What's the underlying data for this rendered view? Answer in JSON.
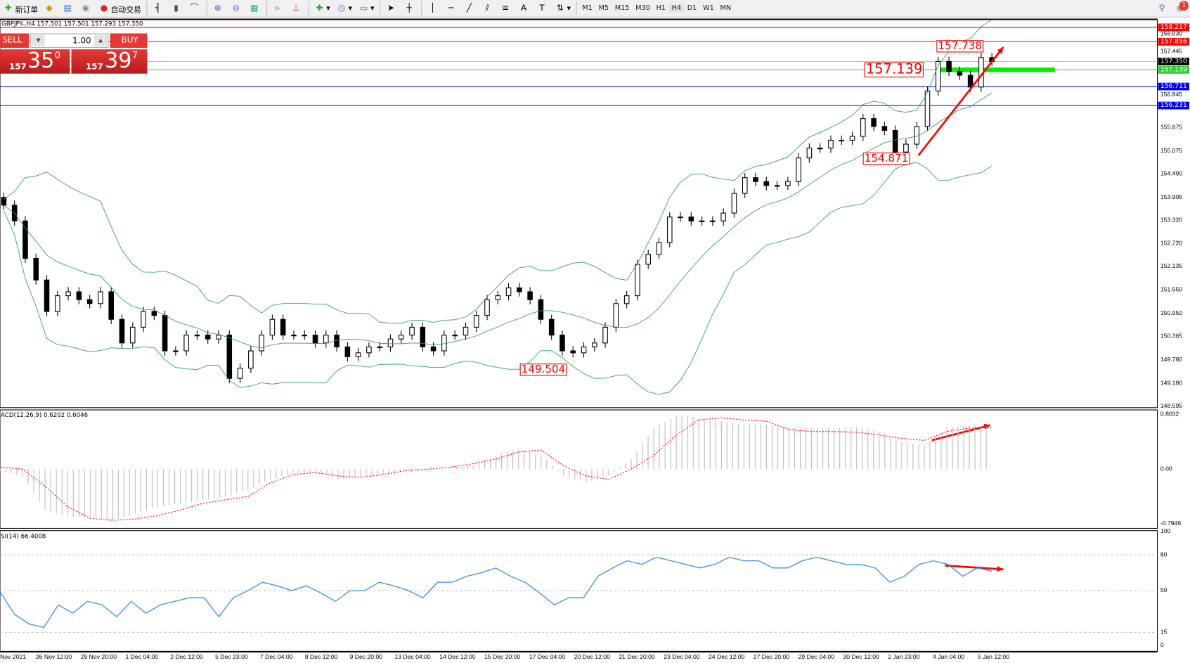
{
  "toolbar": {
    "new_order": "新订单",
    "auto_trading": "自动交易",
    "timeframes": [
      "M1",
      "M5",
      "M15",
      "M30",
      "H1",
      "H4",
      "D1",
      "W1",
      "MN"
    ],
    "active_timeframe": "H4",
    "notification_count": "1"
  },
  "chart_info": "GBPJPY-,H4  157.501 157.501 157.293 157.350",
  "trade_panel": {
    "sell_label": "SELL",
    "buy_label": "BUY",
    "lot": "1.00",
    "sell_big": "157",
    "sell_main": "35",
    "sell_sup": "0",
    "buy_big": "157",
    "buy_main": "39",
    "buy_sup": "7"
  },
  "price_axis": [
    "155.675",
    "155.075",
    "154.490",
    "153.905",
    "153.320",
    "152.720",
    "152.135",
    "151.550",
    "150.950",
    "150.365",
    "149.780",
    "149.180",
    "148.595",
    "158.030",
    "157.445",
    "156.845"
  ],
  "level_tags": [
    {
      "value": "158.217",
      "color": "#ff0000"
    },
    {
      "value": "157.856",
      "color": "#ff0000"
    },
    {
      "value": "157.350",
      "color": "#000000"
    },
    {
      "value": "157.139",
      "color": "#33cc33"
    },
    {
      "value": "156.711",
      "color": "#0000ff"
    },
    {
      "value": "156.231",
      "color": "#0000ff"
    }
  ],
  "annotations": {
    "high_label": "157.738",
    "level_label": "157.139",
    "swing_low_label": "154.871",
    "low_label": "149.504"
  },
  "macd": {
    "label": "ACD(12,26,9) 0.6202 0.6046",
    "axis": [
      "0.8032",
      "0.00",
      "-0.7946"
    ]
  },
  "rsi": {
    "label": "SI(14) 66.4008",
    "axis": [
      "100",
      "80",
      "50",
      "15",
      "0"
    ]
  },
  "time_axis": [
    "Nov 2021",
    "26 Nov 12:00",
    "29 Nov 20:00",
    "1 Dec 04:00",
    "2 Dec 12:00",
    "5 Dec 23:00",
    "7 Dec 04:00",
    "8 Dec 12:00",
    "9 Dec 20:00",
    "13 Dec 04:00",
    "14 Dec 12:00",
    "15 Dec 20:00",
    "17 Dec 04:00",
    "20 Dec 12:00",
    "21 Dec 20:00",
    "23 Dec 04:00",
    "24 Dec 12:00",
    "27 Dec 20:00",
    "29 Dec 04:00",
    "30 Dec 12:00",
    "2 Jan 23:00",
    "4 Jan 04:00",
    "5 Jan 12:00"
  ],
  "chart_data": {
    "type": "candlestick",
    "symbol": "GBPJPY-",
    "timeframe": "H4",
    "ylim": [
      148.595,
      158.217
    ],
    "closes": [
      153.7,
      153.3,
      152.35,
      151.8,
      151.0,
      151.4,
      151.5,
      151.3,
      151.2,
      151.5,
      150.8,
      150.2,
      150.6,
      151.0,
      150.9,
      150.0,
      150.0,
      150.4,
      150.4,
      150.3,
      150.4,
      149.3,
      149.56,
      150.0,
      150.4,
      150.8,
      150.4,
      150.4,
      150.4,
      150.2,
      150.4,
      150.1,
      149.85,
      149.95,
      150.1,
      150.1,
      150.3,
      150.4,
      150.6,
      150.1,
      150.0,
      150.4,
      150.4,
      150.6,
      150.9,
      151.3,
      151.4,
      151.6,
      151.5,
      151.3,
      150.8,
      150.4,
      150.0,
      149.95,
      150.1,
      150.2,
      150.6,
      151.2,
      151.4,
      152.2,
      152.45,
      152.75,
      153.4,
      153.4,
      153.3,
      153.3,
      153.3,
      153.5,
      154.0,
      154.4,
      154.3,
      154.2,
      154.2,
      154.3,
      154.9,
      155.15,
      155.15,
      155.35,
      155.35,
      155.45,
      155.9,
      155.7,
      155.6,
      155.05,
      155.25,
      155.7,
      156.6,
      157.35,
      157.1,
      157.0,
      156.7,
      157.45,
      157.35
    ],
    "levels": [
      158.217,
      157.856,
      157.35,
      157.139,
      156.711,
      156.231
    ],
    "macd_histogram": [
      -0.02,
      -0.1,
      -0.6,
      -0.7,
      -0.7,
      -0.75,
      -0.65,
      -0.55,
      -0.5,
      -0.45,
      -0.4,
      -0.3,
      -0.15,
      -0.05,
      -0.05,
      -0.15,
      -0.12,
      -0.08,
      -0.05,
      -0.02,
      0.02,
      0.05,
      0.2,
      0.3,
      0.2,
      -0.1,
      -0.2,
      -0.1,
      0.15,
      0.6,
      0.78,
      0.75,
      0.7,
      0.65,
      0.65,
      0.6,
      0.6,
      0.6,
      0.62,
      0.55,
      0.4,
      0.35,
      0.6,
      0.65,
      0.6202
    ],
    "macd_signal": [
      0.03,
      0.0,
      -0.25,
      -0.55,
      -0.72,
      -0.75,
      -0.73,
      -0.68,
      -0.6,
      -0.5,
      -0.45,
      -0.4,
      -0.2,
      -0.08,
      -0.05,
      -0.1,
      -0.12,
      -0.08,
      -0.02,
      0.0,
      0.03,
      0.08,
      0.15,
      0.25,
      0.28,
      0.05,
      -0.1,
      -0.15,
      0.0,
      0.2,
      0.5,
      0.72,
      0.75,
      0.72,
      0.7,
      0.58,
      0.55,
      0.55,
      0.54,
      0.5,
      0.45,
      0.42,
      0.55,
      0.6,
      0.6046
    ],
    "macd_ylim": [
      -0.7946,
      0.8032
    ],
    "rsi_values": [
      49,
      30,
      22,
      19,
      38,
      31,
      41,
      38,
      28,
      41,
      31,
      38,
      41,
      44,
      44,
      28,
      44,
      50,
      57,
      54,
      50,
      54,
      48,
      41,
      50,
      50,
      57,
      54,
      50,
      44,
      57,
      57,
      62,
      65,
      69,
      62,
      57,
      48,
      38,
      44,
      44,
      62,
      69,
      75,
      72,
      78,
      75,
      72,
      69,
      72,
      78,
      75,
      75,
      69,
      69,
      75,
      78,
      75,
      72,
      72,
      69,
      57,
      62,
      72,
      75,
      72,
      62,
      69,
      66.4
    ],
    "rsi_levels": [
      80,
      50,
      15
    ],
    "colors": {
      "up": "#ffffff",
      "down": "#000000",
      "bands": "#2e9e5a",
      "macd_signal": "#ff0000",
      "macd_hist": "#bbbbbb",
      "rsi": "#3a8ee6",
      "arrows": "#ff0000",
      "level_band": "#00ee00"
    }
  }
}
